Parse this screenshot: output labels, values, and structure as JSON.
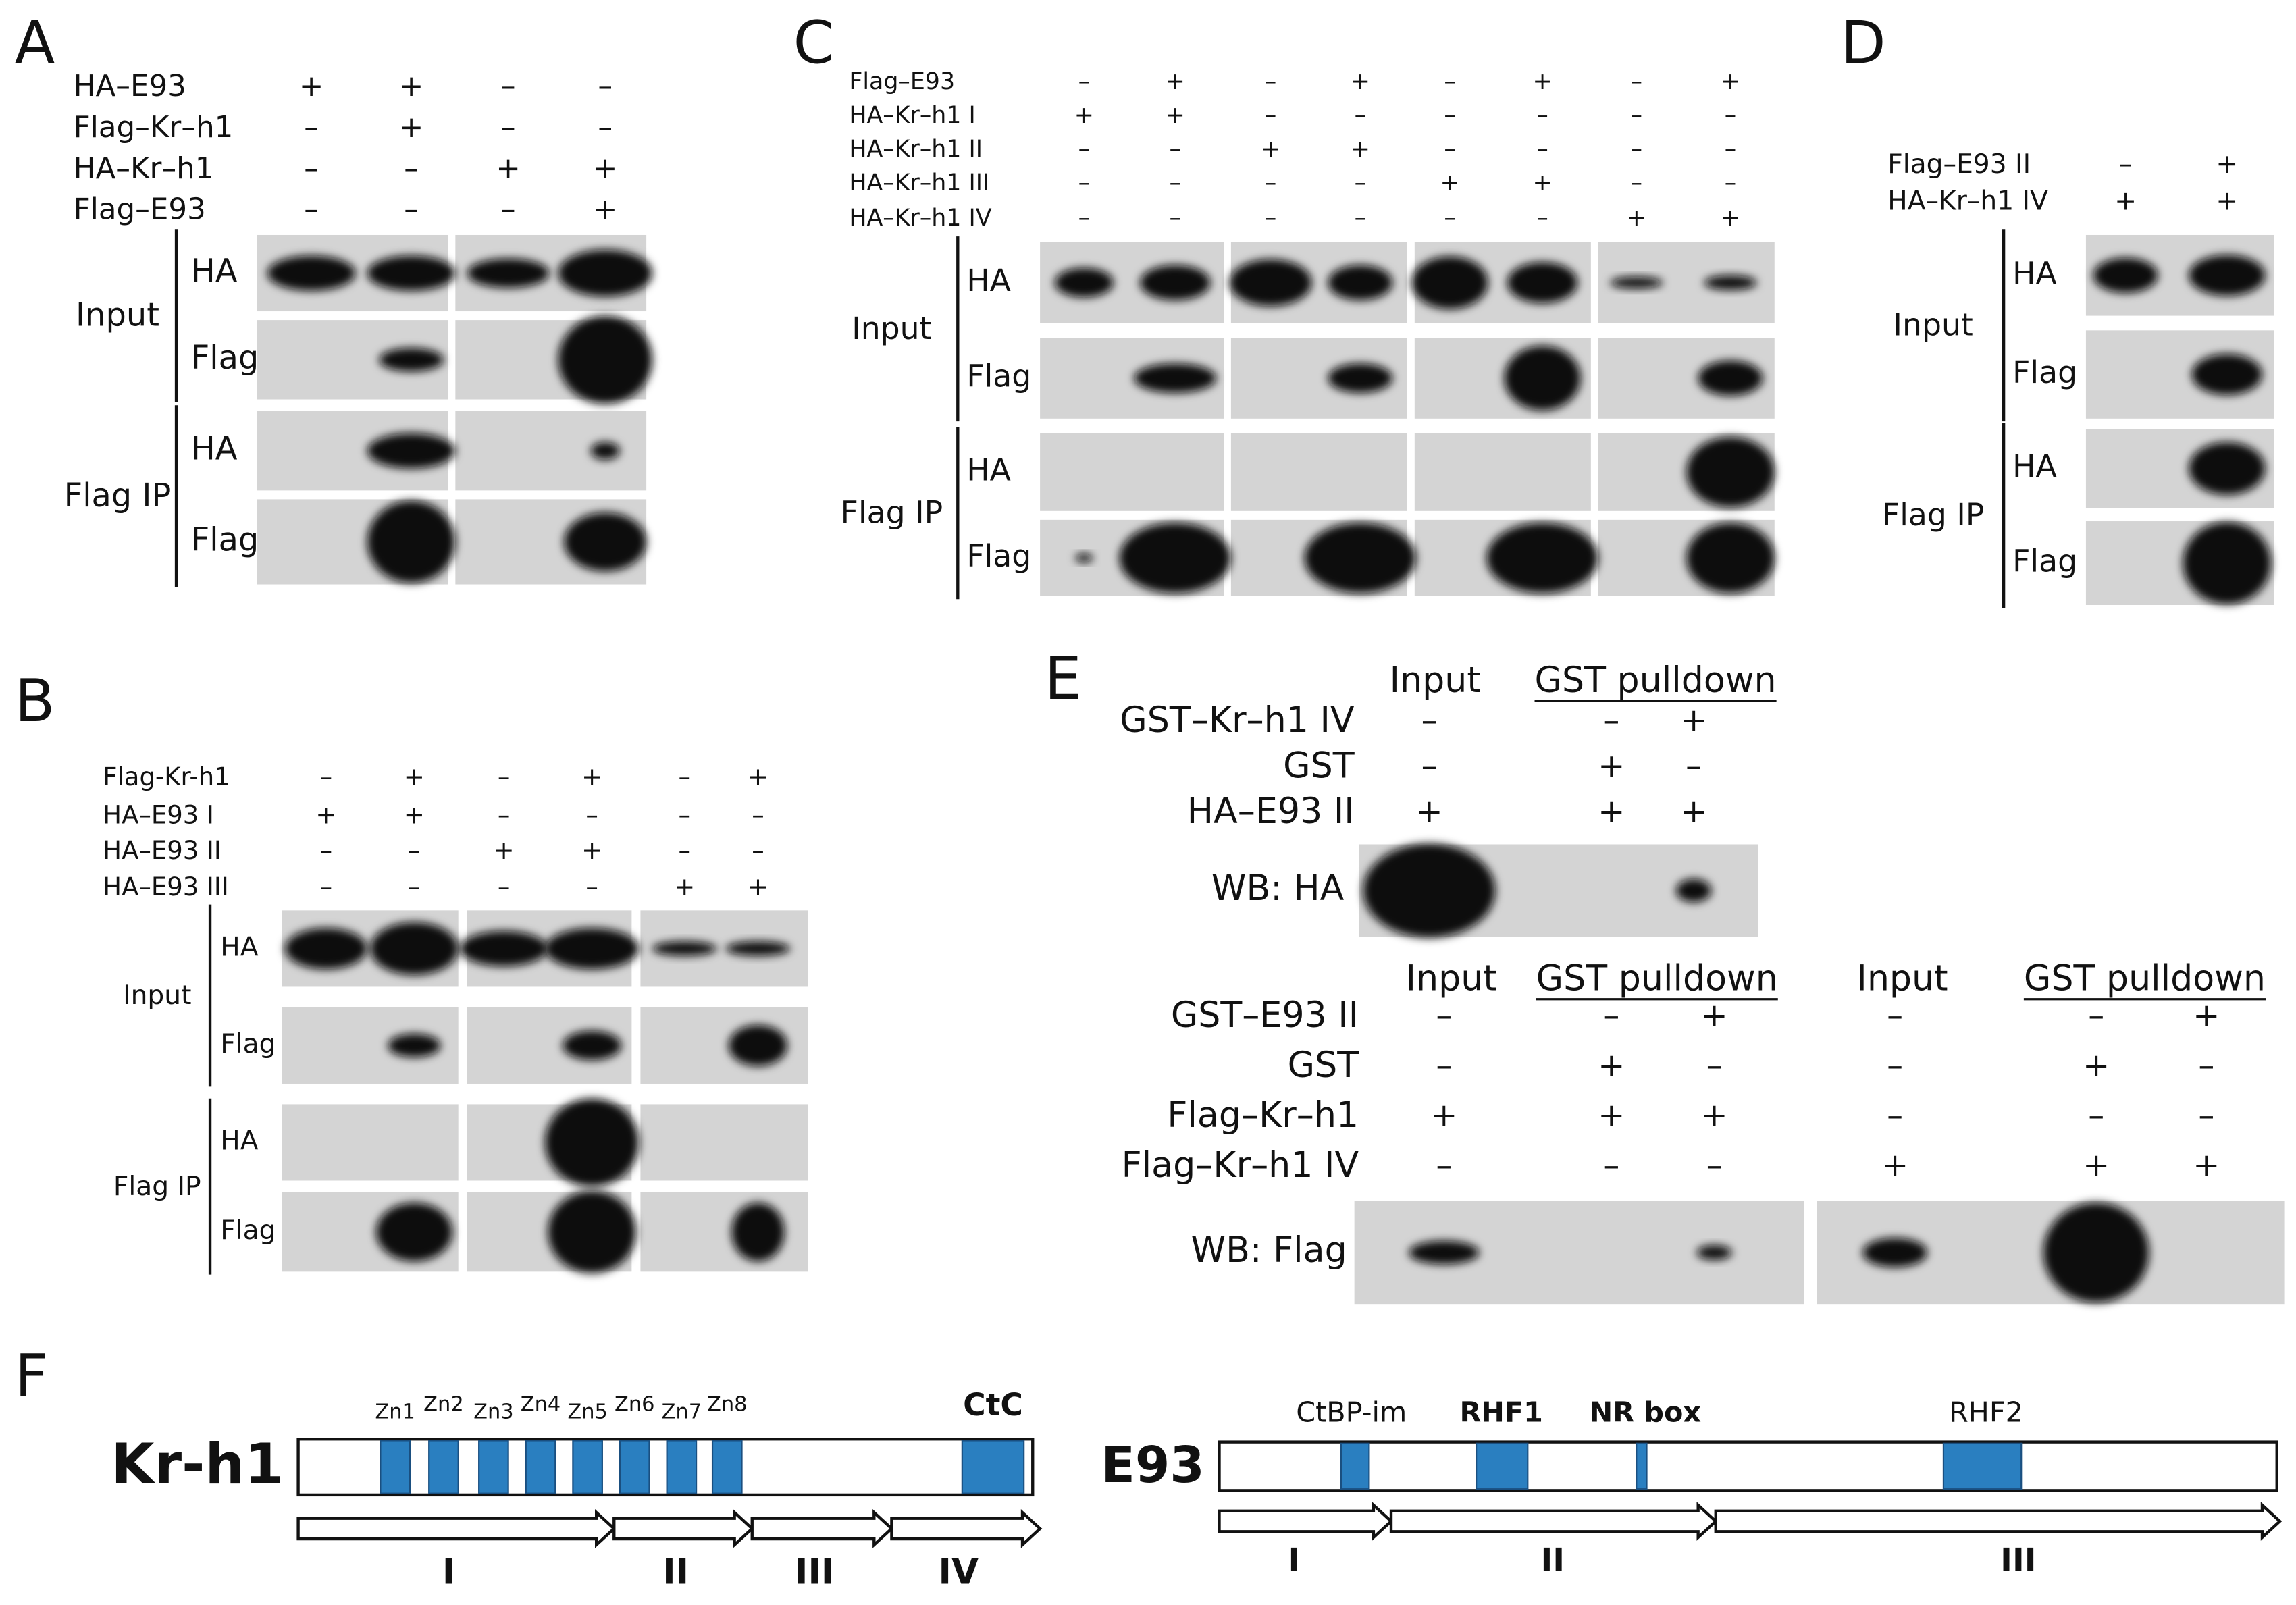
{
  "blot_panels": [
    {
      "letter": "A",
      "rows": [
        {
          "label": "HA–E93",
          "signs": [
            "+",
            "+",
            "–",
            "–"
          ]
        },
        {
          "label": "Flag–Kr–h1",
          "signs": [
            "–",
            "+",
            "–",
            "–"
          ]
        },
        {
          "label": "HA–Kr–h1",
          "signs": [
            "–",
            "–",
            "+",
            "+"
          ]
        },
        {
          "label": "Flag–E93",
          "signs": [
            "–",
            "–",
            "–",
            "+"
          ]
        }
      ],
      "groups": [
        {
          "label": "Input",
          "blots": [
            "HA",
            "Flag"
          ]
        },
        {
          "label": "Flag IP",
          "blots": [
            "HA",
            "Flag"
          ]
        }
      ]
    },
    {
      "letter": "B",
      "rows": [
        {
          "label": "Flag-Kr-h1",
          "signs": [
            "–",
            "+",
            "–",
            "+",
            "–",
            "+"
          ]
        },
        {
          "label": "HA–E93 I",
          "signs": [
            "+",
            "+",
            "–",
            "–",
            "–",
            "–"
          ]
        },
        {
          "label": "HA–E93 II",
          "signs": [
            "–",
            "–",
            "+",
            "+",
            "–",
            "–"
          ]
        },
        {
          "label": "HA–E93 III",
          "signs": [
            "–",
            "–",
            "–",
            "–",
            "+",
            "+"
          ]
        }
      ],
      "groups": [
        {
          "label": "Input",
          "blots": [
            "HA",
            "Flag"
          ]
        },
        {
          "label": "Flag IP",
          "blots": [
            "HA",
            "Flag"
          ]
        }
      ]
    },
    {
      "letter": "C",
      "rows": [
        {
          "label": "Flag–E93",
          "signs": [
            "–",
            "+",
            "–",
            "+",
            "–",
            "+",
            "–",
            "+"
          ]
        },
        {
          "label": "HA–Kr–h1 I",
          "signs": [
            "+",
            "+",
            "–",
            "–",
            "–",
            "–",
            "–",
            "–"
          ]
        },
        {
          "label": "HA–Kr–h1 II",
          "signs": [
            "–",
            "–",
            "+",
            "+",
            "–",
            "–",
            "–",
            "–"
          ]
        },
        {
          "label": "HA–Kr–h1  III",
          "signs": [
            "–",
            "–",
            "–",
            "–",
            "+",
            "+",
            "–",
            "–"
          ]
        },
        {
          "label": "HA–Kr–h1 IV",
          "signs": [
            "–",
            "–",
            "–",
            "–",
            "–",
            "–",
            "+",
            "+"
          ]
        }
      ],
      "groups": [
        {
          "label": "Input",
          "blots": [
            "HA",
            "Flag"
          ]
        },
        {
          "label": "Flag IP",
          "blots": [
            "HA",
            "Flag"
          ]
        }
      ]
    },
    {
      "letter": "D",
      "rows": [
        {
          "label": "Flag–E93 II",
          "signs": [
            "–",
            "+"
          ]
        },
        {
          "label": "HA–Kr–h1 IV",
          "signs": [
            "+",
            "+"
          ]
        }
      ],
      "groups": [
        {
          "label": "Input",
          "blots": [
            "HA",
            "Flag"
          ]
        },
        {
          "label": "Flag IP",
          "blots": [
            "HA",
            "Flag"
          ]
        }
      ]
    }
  ],
  "panel_e": {
    "letter": "E",
    "top": {
      "headers": [
        "Input",
        "GST pulldown"
      ],
      "rows": [
        {
          "label": "GST–Kr–h1 IV",
          "signs": [
            "–",
            "–",
            "+"
          ]
        },
        {
          "label": "GST",
          "signs": [
            "–",
            "+",
            "–"
          ]
        },
        {
          "label": "HA–E93 II",
          "signs": [
            "+",
            "+",
            "+"
          ]
        }
      ],
      "blot": "WB: HA"
    },
    "bottom": {
      "headers": [
        "Input",
        "GST pulldown",
        "Input",
        "GST pulldown"
      ],
      "rows": [
        {
          "label": "GST–E93 II",
          "signs": [
            "–",
            "–",
            "+",
            "–",
            "–",
            "+"
          ]
        },
        {
          "label": "GST",
          "signs": [
            "–",
            "+",
            "–",
            "–",
            "+",
            "–"
          ]
        },
        {
          "label": "Flag–Kr–h1",
          "signs": [
            "+",
            "+",
            "+",
            "–",
            "–",
            "–"
          ]
        },
        {
          "label": "Flag–Kr–h1 IV",
          "signs": [
            "–",
            "–",
            "–",
            "+",
            "+",
            "+"
          ]
        }
      ],
      "blot": "WB: Flag"
    }
  },
  "panel_f": {
    "letter": "F",
    "kr": {
      "name": "Kr-h1",
      "domains": [
        "Zn1",
        "Zn2",
        "Zn3",
        "Zn4",
        "Zn5",
        "Zn6",
        "Zn7",
        "Zn8",
        "CtC"
      ],
      "fragments": [
        "I",
        "II",
        "III",
        "IV"
      ]
    },
    "e93": {
      "name": "E93",
      "domains": [
        "CtBP-im",
        "RHF1",
        "NR box",
        "RHF2"
      ],
      "fragments": [
        "I",
        "II",
        "III"
      ]
    }
  }
}
